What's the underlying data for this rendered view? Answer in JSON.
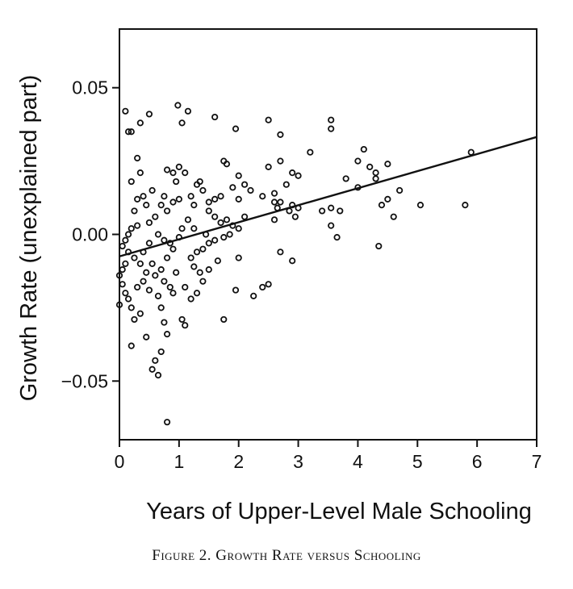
{
  "chart_data": {
    "type": "scatter",
    "title": "",
    "caption": "Figure 2. Growth Rate versus Schooling",
    "xlabel": "Years of Upper-Level Male Schooling",
    "ylabel": "Growth Rate (unexplained part)",
    "xlim": [
      0,
      7
    ],
    "ylim": [
      -0.07,
      0.07
    ],
    "x_ticks": [
      0,
      1,
      2,
      3,
      4,
      5,
      6,
      7
    ],
    "x_tick_labels": [
      "0",
      "1",
      "2",
      "3",
      "4",
      "5",
      "6",
      "7"
    ],
    "y_ticks": [
      -0.05,
      0.0,
      0.05
    ],
    "y_tick_labels": [
      "−0.05",
      "0.00",
      "0.05"
    ],
    "grid": false,
    "series": [
      {
        "marker": "open-circle",
        "points": [
          [
            0.1,
            0.042
          ],
          [
            0.15,
            0.035
          ],
          [
            0.2,
            0.035
          ],
          [
            0.35,
            0.038
          ],
          [
            0.5,
            0.041
          ],
          [
            0.98,
            0.044
          ],
          [
            1.05,
            0.038
          ],
          [
            1.15,
            0.042
          ],
          [
            1.6,
            0.04
          ],
          [
            1.95,
            0.036
          ],
          [
            2.5,
            0.039
          ],
          [
            2.7,
            0.034
          ],
          [
            3.55,
            0.039
          ],
          [
            3.55,
            0.036
          ],
          [
            3.2,
            0.028
          ],
          [
            5.9,
            0.028
          ],
          [
            4.1,
            0.029
          ],
          [
            4.2,
            0.023
          ],
          [
            4.3,
            0.021
          ],
          [
            4.5,
            0.024
          ],
          [
            4.0,
            0.025
          ],
          [
            3.8,
            0.019
          ],
          [
            4.0,
            0.016
          ],
          [
            4.3,
            0.019
          ],
          [
            4.7,
            0.015
          ],
          [
            4.5,
            0.012
          ],
          [
            4.4,
            0.01
          ],
          [
            4.6,
            0.006
          ],
          [
            5.05,
            0.01
          ],
          [
            5.8,
            0.01
          ],
          [
            3.4,
            0.008
          ],
          [
            3.55,
            0.009
          ],
          [
            3.7,
            0.008
          ],
          [
            3.55,
            0.003
          ],
          [
            3.65,
            -0.001
          ],
          [
            4.35,
            -0.004
          ],
          [
            2.9,
            0.021
          ],
          [
            3.0,
            0.02
          ],
          [
            2.8,
            0.017
          ],
          [
            2.7,
            0.011
          ],
          [
            2.85,
            0.008
          ],
          [
            2.6,
            0.005
          ],
          [
            2.9,
            0.01
          ],
          [
            3.0,
            0.009
          ],
          [
            2.95,
            0.006
          ],
          [
            2.7,
            -0.006
          ],
          [
            2.9,
            -0.009
          ],
          [
            2.5,
            0.023
          ],
          [
            2.4,
            0.013
          ],
          [
            2.2,
            0.015
          ],
          [
            2.6,
            0.011
          ],
          [
            2.65,
            0.009
          ],
          [
            2.7,
            0.025
          ],
          [
            2.4,
            -0.018
          ],
          [
            2.5,
            -0.017
          ],
          [
            2.25,
            -0.021
          ],
          [
            2.0,
            0.02
          ],
          [
            1.8,
            0.024
          ],
          [
            1.75,
            0.025
          ],
          [
            1.9,
            0.016
          ],
          [
            2.0,
            0.012
          ],
          [
            2.1,
            0.017
          ],
          [
            1.7,
            0.013
          ],
          [
            1.6,
            0.012
          ],
          [
            1.5,
            0.011
          ],
          [
            1.4,
            0.015
          ],
          [
            1.35,
            0.018
          ],
          [
            1.3,
            0.017
          ],
          [
            1.2,
            0.013
          ],
          [
            1.25,
            0.01
          ],
          [
            1.5,
            0.008
          ],
          [
            1.6,
            0.006
          ],
          [
            1.7,
            0.004
          ],
          [
            1.8,
            0.005
          ],
          [
            1.9,
            0.003
          ],
          [
            2.0,
            0.002
          ],
          [
            1.85,
            0.0
          ],
          [
            1.75,
            -0.001
          ],
          [
            1.6,
            -0.002
          ],
          [
            1.5,
            -0.003
          ],
          [
            1.4,
            -0.005
          ],
          [
            1.3,
            -0.006
          ],
          [
            1.2,
            -0.008
          ],
          [
            1.25,
            -0.011
          ],
          [
            1.35,
            -0.013
          ],
          [
            1.5,
            -0.012
          ],
          [
            1.4,
            -0.016
          ],
          [
            1.3,
            -0.02
          ],
          [
            1.2,
            -0.022
          ],
          [
            1.1,
            -0.018
          ],
          [
            1.05,
            -0.029
          ],
          [
            1.1,
            -0.031
          ],
          [
            1.75,
            -0.029
          ],
          [
            1.95,
            -0.019
          ],
          [
            2.0,
            -0.008
          ],
          [
            1.1,
            0.021
          ],
          [
            1.0,
            0.023
          ],
          [
            0.9,
            0.021
          ],
          [
            0.8,
            0.022
          ],
          [
            0.95,
            0.018
          ],
          [
            1.0,
            0.012
          ],
          [
            0.9,
            0.011
          ],
          [
            0.8,
            0.008
          ],
          [
            0.7,
            0.01
          ],
          [
            0.6,
            0.006
          ],
          [
            0.5,
            0.004
          ],
          [
            0.65,
            0.0
          ],
          [
            0.75,
            -0.002
          ],
          [
            0.85,
            -0.003
          ],
          [
            0.9,
            -0.005
          ],
          [
            0.8,
            -0.008
          ],
          [
            0.7,
            -0.012
          ],
          [
            0.6,
            -0.014
          ],
          [
            0.75,
            -0.016
          ],
          [
            0.85,
            -0.018
          ],
          [
            0.7,
            -0.025
          ],
          [
            0.75,
            -0.03
          ],
          [
            0.8,
            -0.034
          ],
          [
            0.7,
            -0.04
          ],
          [
            0.6,
            -0.043
          ],
          [
            0.55,
            -0.046
          ],
          [
            0.65,
            -0.048
          ],
          [
            0.8,
            -0.064
          ],
          [
            0.5,
            -0.019
          ],
          [
            0.4,
            -0.016
          ],
          [
            0.3,
            0.026
          ],
          [
            0.35,
            0.021
          ],
          [
            0.2,
            0.018
          ],
          [
            0.3,
            0.012
          ],
          [
            0.4,
            0.013
          ],
          [
            0.45,
            0.01
          ],
          [
            0.25,
            0.008
          ],
          [
            0.3,
            0.003
          ],
          [
            0.2,
            0.002
          ],
          [
            0.15,
            0.0
          ],
          [
            0.1,
            -0.002
          ],
          [
            0.05,
            -0.004
          ],
          [
            0.15,
            -0.006
          ],
          [
            0.25,
            -0.008
          ],
          [
            0.35,
            -0.01
          ],
          [
            0.1,
            -0.01
          ],
          [
            0.05,
            -0.012
          ],
          [
            0.0,
            -0.014
          ],
          [
            0.05,
            -0.017
          ],
          [
            0.1,
            -0.02
          ],
          [
            0.15,
            -0.022
          ],
          [
            0.2,
            -0.025
          ],
          [
            0.0,
            -0.024
          ],
          [
            0.25,
            -0.029
          ],
          [
            0.35,
            -0.027
          ],
          [
            0.2,
            -0.038
          ],
          [
            0.45,
            -0.035
          ],
          [
            0.5,
            -0.003
          ],
          [
            0.55,
            -0.01
          ],
          [
            0.45,
            -0.013
          ],
          [
            1.15,
            0.005
          ],
          [
            1.05,
            0.002
          ],
          [
            1.0,
            -0.001
          ],
          [
            0.95,
            -0.013
          ],
          [
            0.55,
            0.015
          ],
          [
            1.25,
            0.002
          ],
          [
            1.45,
            0.0
          ],
          [
            1.65,
            -0.009
          ],
          [
            0.4,
            -0.006
          ],
          [
            0.3,
            -0.018
          ],
          [
            0.65,
            -0.021
          ],
          [
            0.75,
            0.013
          ],
          [
            0.9,
            -0.02
          ],
          [
            2.1,
            0.006
          ],
          [
            2.6,
            0.014
          ]
        ]
      }
    ],
    "trend_line": {
      "x": [
        0,
        7
      ],
      "y": [
        -0.0075,
        0.0332
      ]
    }
  }
}
